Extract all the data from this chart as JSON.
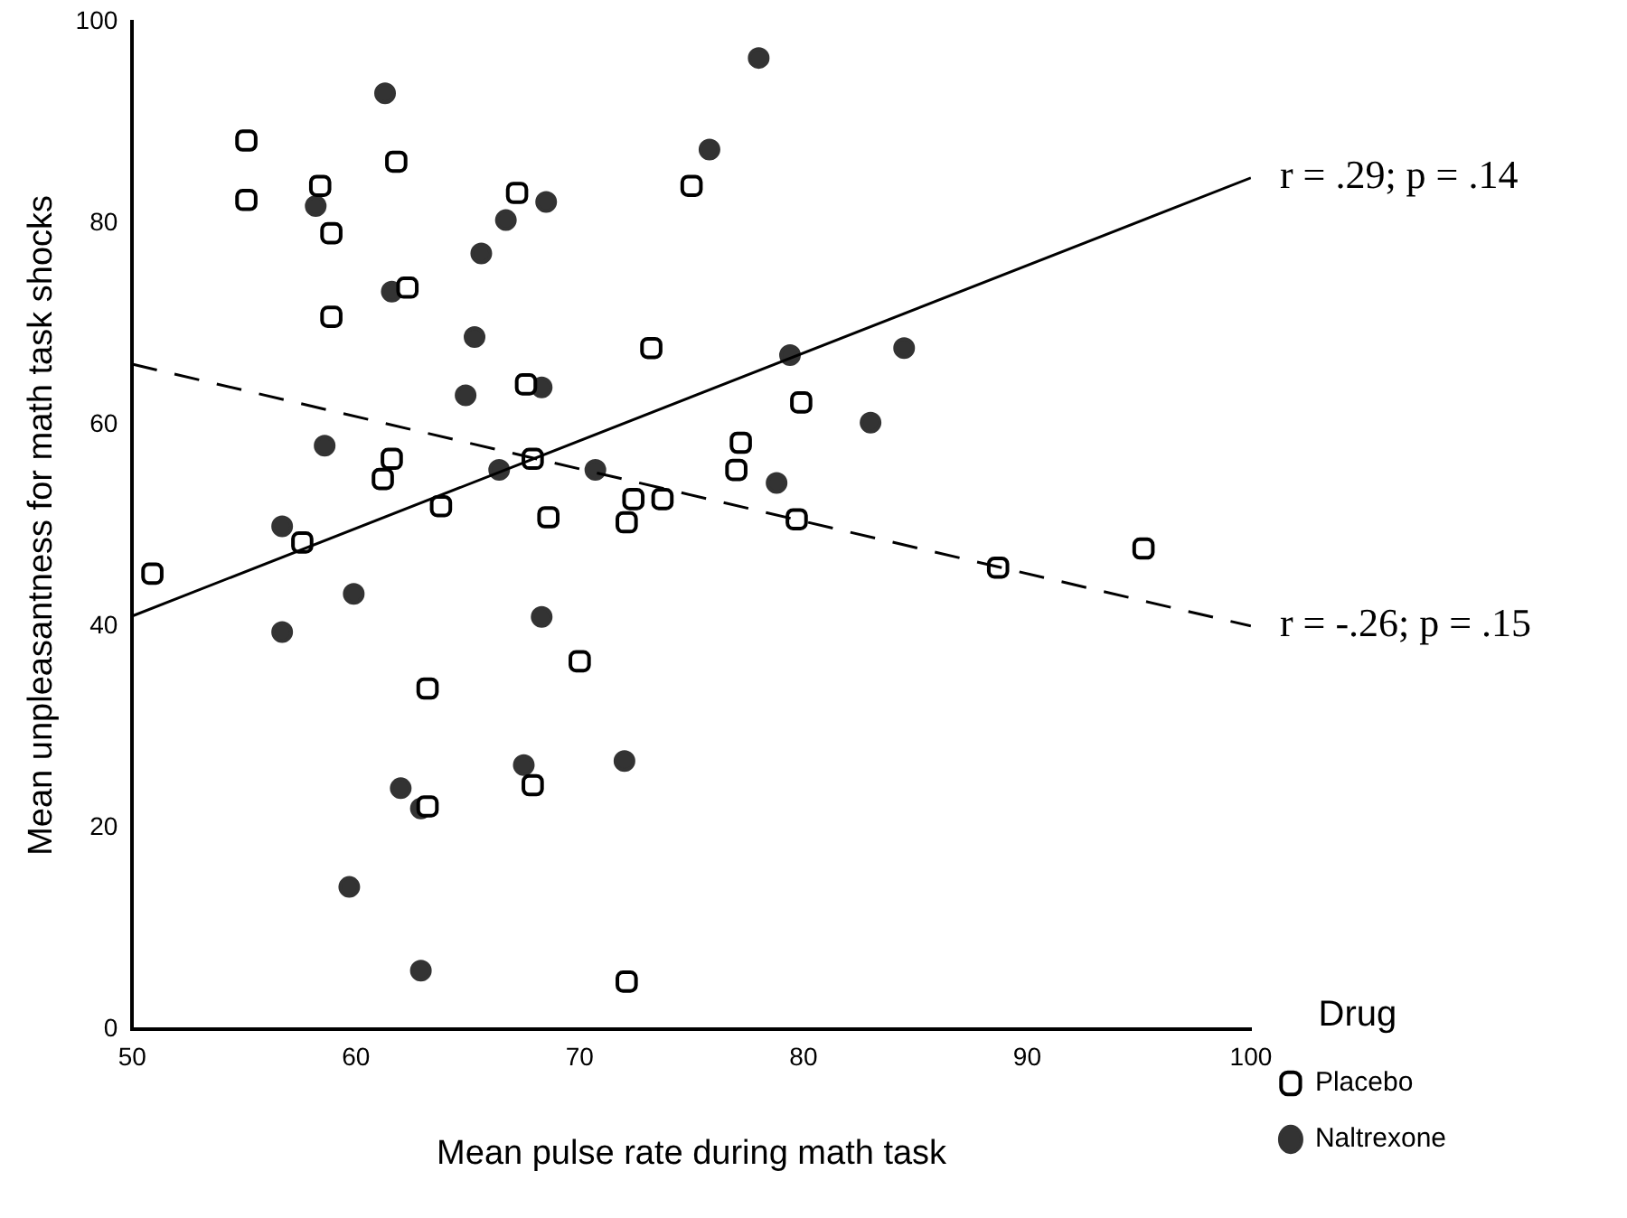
{
  "chart_data": {
    "type": "scatter",
    "xlabel": "Mean pulse rate during math task",
    "ylabel": "Mean unpleasantness for math task shocks",
    "legend_title": "Drug",
    "legend": "right",
    "grid": false,
    "xlim": [
      50,
      100
    ],
    "xticks": [
      50,
      60,
      70,
      80,
      90,
      100
    ],
    "ylim": [
      0,
      100
    ],
    "yticks": [
      0,
      20,
      40,
      60,
      80,
      100
    ],
    "annotations": [
      {
        "text": "r = .29; p = .14",
        "x": 100,
        "y": 84.5
      },
      {
        "text": "r = -.26; p = .15",
        "x": 100,
        "y": 40
      }
    ],
    "series": [
      {
        "name": "Placebo",
        "color": "#000000",
        "marker": "square",
        "x": [
          50.9,
          55.1,
          55.1,
          58.4,
          58.9,
          61.8,
          58.9,
          62.3,
          67.2,
          67.6,
          67.9,
          61.6,
          61.2,
          63.8,
          68.6,
          72.1,
          72.4,
          73.7,
          73.2,
          75.0,
          79.9,
          77.2,
          77.0,
          79.7,
          88.7,
          95.2,
          57.6,
          63.2,
          70.0,
          67.9,
          63.2,
          72.1
        ],
        "values": [
          45.2,
          88.2,
          82.3,
          83.7,
          79.0,
          86.1,
          70.7,
          73.6,
          83.0,
          64.0,
          56.6,
          56.6,
          54.6,
          51.9,
          50.8,
          50.3,
          52.6,
          52.6,
          67.6,
          83.7,
          62.2,
          58.2,
          55.5,
          50.6,
          45.8,
          47.7,
          48.3,
          33.8,
          36.5,
          24.2,
          22.1,
          4.7
        ]
      },
      {
        "name": "Naltrexone",
        "color": "#333333",
        "marker": "circle",
        "x": [
          61.3,
          58.2,
          68.5,
          66.7,
          65.6,
          61.6,
          65.3,
          64.9,
          68.3,
          58.6,
          66.4,
          70.7,
          56.7,
          78.0,
          75.8,
          79.4,
          84.5,
          83.0,
          78.8,
          59.9,
          56.7,
          68.3,
          67.5,
          72.0,
          62.0,
          62.9,
          59.7,
          62.9
        ],
        "values": [
          92.9,
          81.7,
          82.1,
          80.3,
          77.0,
          73.2,
          68.7,
          62.9,
          63.7,
          57.9,
          55.5,
          55.5,
          49.9,
          96.4,
          87.3,
          66.9,
          67.6,
          60.2,
          54.2,
          43.2,
          39.4,
          40.9,
          26.2,
          26.6,
          23.9,
          21.9,
          14.1,
          5.8
        ]
      },
      {
        "type": "line",
        "color": "#000000",
        "marker": "none",
        "line_style": "dashed",
        "x": [
          50,
          100
        ],
        "values": [
          66,
          40
        ]
      },
      {
        "type": "line",
        "color": "#000000",
        "marker": "none",
        "line_style": "solid",
        "x": [
          50,
          100
        ],
        "values": [
          41,
          84.5
        ]
      }
    ]
  }
}
